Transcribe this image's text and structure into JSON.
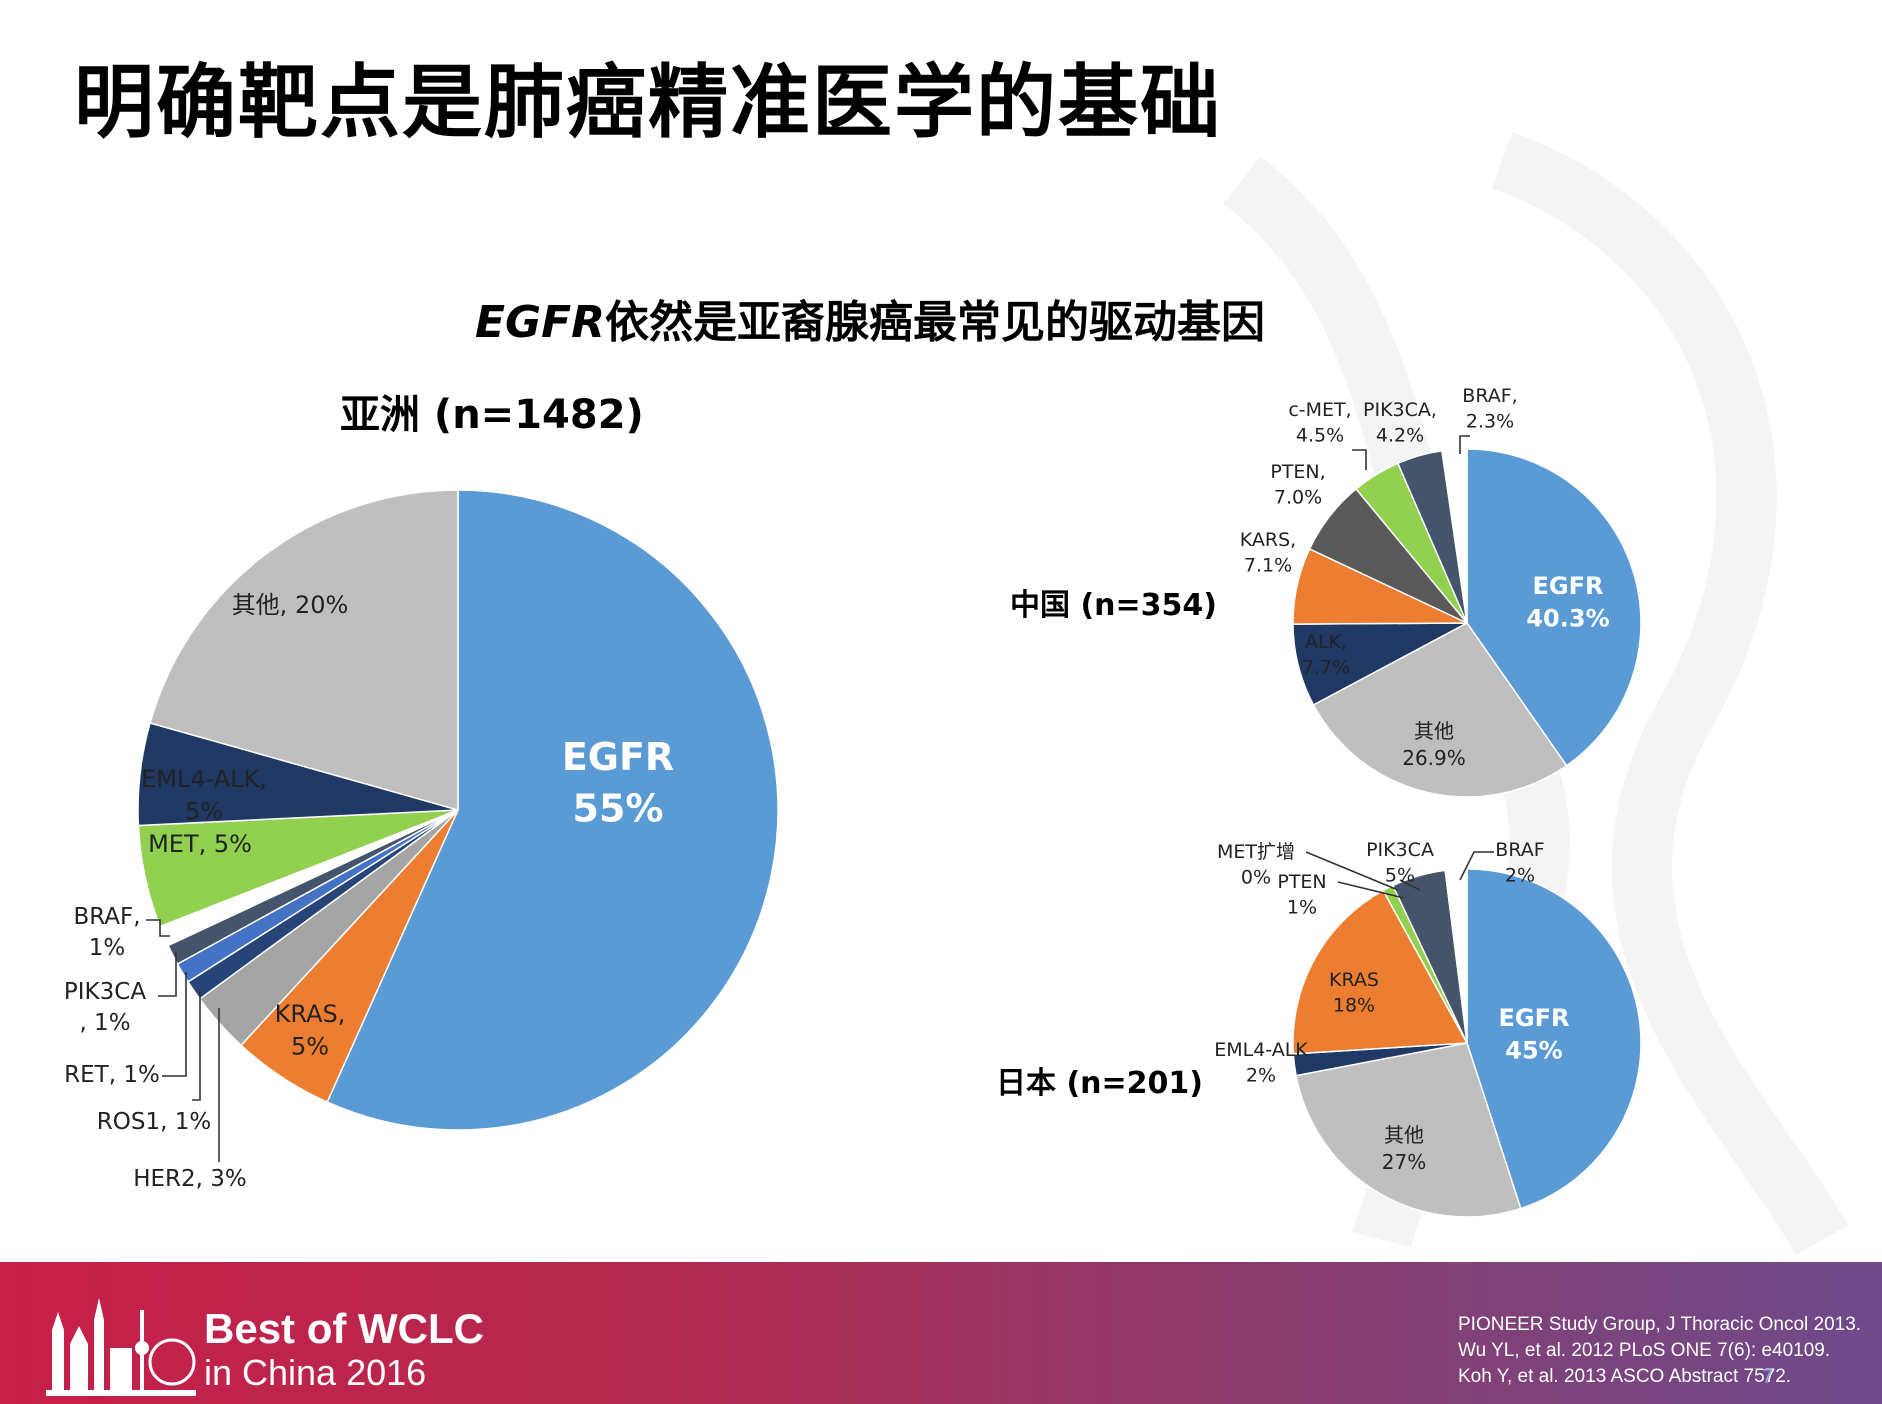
{
  "title": "明确靶点是肺癌精准医学的基础",
  "subtitle": {
    "gene": "EGFR",
    "rest": "依然是亚裔腺癌最常见的驱动基因"
  },
  "chart_data": [
    {
      "type": "pie",
      "title": "亚洲 (n=1482)",
      "slices": [
        {
          "name": "EGFR",
          "value": 55,
          "label": "EGFR",
          "value_label": "55%",
          "color": "#5b9bd5"
        },
        {
          "name": "KRAS",
          "value": 5,
          "label": "KRAS,",
          "value_label": "5%",
          "color": "#ed7d31"
        },
        {
          "name": "HER2",
          "value": 3,
          "label": "HER2, 3%",
          "value_label": "",
          "color": "#a5a5a5"
        },
        {
          "name": "ROS1",
          "value": 1,
          "label": "ROS1, 1%",
          "value_label": "",
          "color": "#264478"
        },
        {
          "name": "RET",
          "value": 1,
          "label": "RET, 1%",
          "value_label": "",
          "color": "#4472c4"
        },
        {
          "name": "PIK3CA",
          "value": 1,
          "label": "PIK3CA",
          "value_label": ", 1%",
          "color": "#44546a"
        },
        {
          "name": "BRAF",
          "value": 1,
          "label": "BRAF,",
          "value_label": "1%",
          "color": "#ffffff"
        },
        {
          "name": "MET",
          "value": 5,
          "label": "MET, 5%",
          "value_label": "",
          "color": "#92d050"
        },
        {
          "name": "EML4-ALK",
          "value": 5,
          "label": "EML4-ALK,",
          "value_label": "5%",
          "color": "#1f3864"
        },
        {
          "name": "其他",
          "value": 20,
          "label": "其他, 20%",
          "value_label": "",
          "color": "#bfbfbf"
        }
      ]
    },
    {
      "type": "pie",
      "title": "中国 (n=354)",
      "slices": [
        {
          "name": "EGFR",
          "value": 40.3,
          "label": "EGFR",
          "value_label": "40.3%",
          "color": "#5b9bd5"
        },
        {
          "name": "其他",
          "value": 26.9,
          "label": "其他",
          "value_label": "26.9%",
          "color": "#bfbfbf"
        },
        {
          "name": "ALK",
          "value": 7.7,
          "label": "ALK,",
          "value_label": "7.7%",
          "color": "#1f3864"
        },
        {
          "name": "KARS",
          "value": 7.1,
          "label": "KARS,",
          "value_label": "7.1%",
          "color": "#ed7d31"
        },
        {
          "name": "PTEN",
          "value": 7.0,
          "label": "PTEN,",
          "value_label": "7.0%",
          "color": "#595959"
        },
        {
          "name": "c-MET",
          "value": 4.5,
          "label": "c-MET,",
          "value_label": "4.5%",
          "color": "#92d050"
        },
        {
          "name": "PIK3CA",
          "value": 4.2,
          "label": "PIK3CA,",
          "value_label": "4.2%",
          "color": "#44546a"
        },
        {
          "name": "BRAF",
          "value": 2.3,
          "label": "BRAF,",
          "value_label": "2.3%",
          "color": "#ffffff"
        }
      ]
    },
    {
      "type": "pie",
      "title": "日本 (n=201)",
      "slices": [
        {
          "name": "EGFR",
          "value": 45,
          "label": "EGFR",
          "value_label": "45%",
          "color": "#5b9bd5"
        },
        {
          "name": "其他",
          "value": 27,
          "label": "其他",
          "value_label": "27%",
          "color": "#bfbfbf"
        },
        {
          "name": "EML4-ALK",
          "value": 2,
          "label": "EML4-ALK",
          "value_label": "2%",
          "color": "#1f3864"
        },
        {
          "name": "KRAS",
          "value": 18,
          "label": "KRAS",
          "value_label": "18%",
          "color": "#ed7d31"
        },
        {
          "name": "MET扩增",
          "value": 0,
          "label": "MET扩增",
          "value_label": "0%",
          "color": "#595959"
        },
        {
          "name": "PTEN",
          "value": 1,
          "label": "PTEN",
          "value_label": "1%",
          "color": "#92d050"
        },
        {
          "name": "PIK3CA",
          "value": 5,
          "label": "PIK3CA",
          "value_label": "5%",
          "color": "#44546a"
        },
        {
          "name": "BRAF",
          "value": 2,
          "label": "BRAF",
          "value_label": "2%",
          "color": "#ffffff"
        }
      ]
    }
  ],
  "footer": {
    "brand_line1": "Best of WCLC",
    "brand_line2": "in China 2016",
    "references": [
      "PIONEER Study Group, J Thoracic Oncol 2013.",
      "Wu YL, et al. 2012  PLoS ONE 7(6): e40109.",
      "Koh Y, et al. 2013 ASCO Abstract 7572."
    ],
    "page_number": "7"
  }
}
